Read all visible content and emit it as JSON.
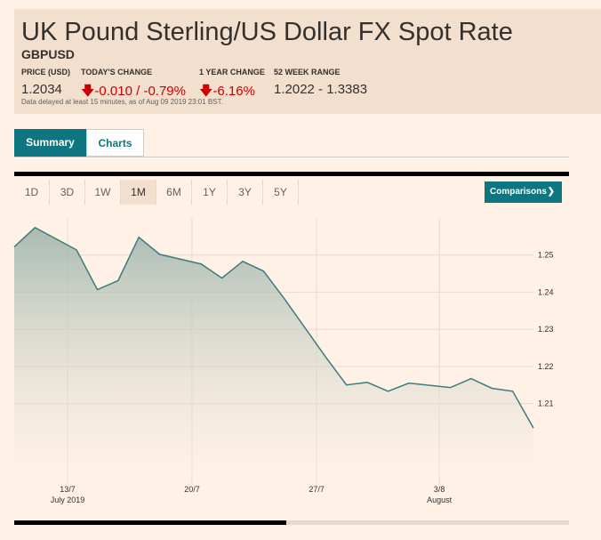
{
  "header": {
    "title": "UK Pound Sterling/US Dollar FX Spot Rate",
    "symbol": "GBPUSD",
    "stats": [
      {
        "label": "PRICE (USD)",
        "value": "1.2034"
      },
      {
        "label": "TODAY'S CHANGE",
        "value": "-0.010 / -0.79%"
      },
      {
        "label": "1 YEAR CHANGE",
        "value": "-6.16%"
      },
      {
        "label": "52 WEEK RANGE",
        "value": "1.2022 - 1.3383"
      }
    ],
    "note": "Data delayed at least 15 minutes, as of Aug 09 2019 23:01 BST."
  },
  "tabs": [
    "Summary",
    "Charts"
  ],
  "ranges": [
    "1D",
    "3D",
    "1W",
    "1M",
    "6M",
    "1Y",
    "3Y",
    "5Y"
  ],
  "comparisons": "Comparisons",
  "chart_data": {
    "type": "area",
    "color": "#3d7b7f",
    "x": [
      0,
      1,
      3,
      4,
      5,
      6,
      7,
      9,
      10,
      11,
      12,
      13,
      15,
      16,
      17,
      18,
      19,
      21,
      22,
      23,
      24,
      25
    ],
    "values": [
      1.2522,
      1.2574,
      1.2514,
      1.2407,
      1.2431,
      1.2548,
      1.2502,
      1.2476,
      1.2438,
      1.2483,
      1.2457,
      1.2383,
      1.2225,
      1.215,
      1.2157,
      1.2133,
      1.2155,
      1.2143,
      1.2167,
      1.2141,
      1.2133,
      1.2034
    ],
    "xlim": [
      0,
      25
    ],
    "xticks": [
      {
        "value": 2.57,
        "label": "13/7"
      },
      {
        "value": 8.56,
        "label": "20/7"
      },
      {
        "value": 14.56,
        "label": "27/7"
      },
      {
        "value": 20.47,
        "label": "3/8"
      }
    ],
    "month_labels": [
      {
        "value": 2.57,
        "label": "July 2019"
      },
      {
        "value": 20.47,
        "label": "August"
      }
    ],
    "ylim": [
      1.19,
      1.26
    ],
    "yticks": [
      1.21,
      1.22,
      1.23,
      1.24,
      1.25
    ],
    "grid": true
  }
}
